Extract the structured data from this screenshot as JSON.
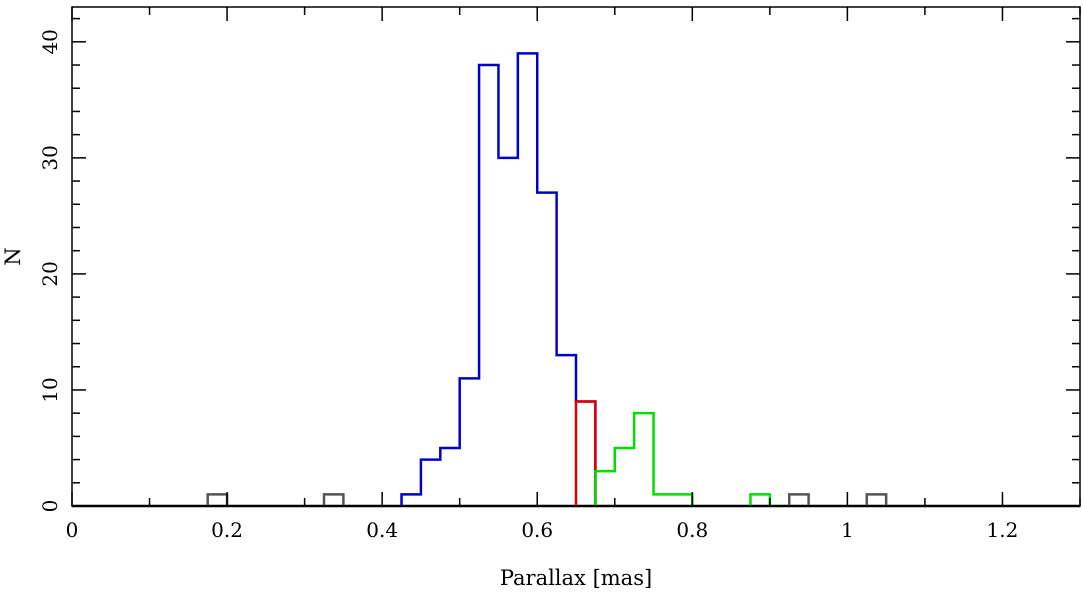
{
  "chart_data": {
    "type": "histogram",
    "xlabel": "Parallax [mas]",
    "ylabel": "N",
    "xlim": [
      0,
      1.3
    ],
    "ylim": [
      0,
      43
    ],
    "bin_width": 0.025,
    "x_ticks": [
      {
        "value": 0,
        "label": "0"
      },
      {
        "value": 0.2,
        "label": "0.2"
      },
      {
        "value": 0.4,
        "label": "0.4"
      },
      {
        "value": 0.6,
        "label": "0.6"
      },
      {
        "value": 0.8,
        "label": "0.8"
      },
      {
        "value": 1,
        "label": "1"
      },
      {
        "value": 1.2,
        "label": "1.2"
      }
    ],
    "y_ticks": [
      {
        "value": 0,
        "label": "0"
      },
      {
        "value": 10,
        "label": "10"
      },
      {
        "value": 20,
        "label": "20"
      },
      {
        "value": 30,
        "label": "30"
      },
      {
        "value": 40,
        "label": "40"
      }
    ],
    "series": [
      {
        "color": "#0000c8",
        "bins": [
          {
            "x0": 0.425,
            "count": 1
          },
          {
            "x0": 0.45,
            "count": 4
          },
          {
            "x0": 0.475,
            "count": 5
          },
          {
            "x0": 0.5,
            "count": 11
          },
          {
            "x0": 0.525,
            "count": 38
          },
          {
            "x0": 0.55,
            "count": 30
          },
          {
            "x0": 0.575,
            "count": 39
          },
          {
            "x0": 0.6,
            "count": 27
          },
          {
            "x0": 0.625,
            "count": 13
          },
          {
            "x0": 0.65,
            "count": 9
          }
        ]
      },
      {
        "color": "#e00000",
        "bins": [
          {
            "x0": 0.65,
            "count": 9
          }
        ]
      },
      {
        "color": "#00e000",
        "bins": [
          {
            "x0": 0.675,
            "count": 3
          },
          {
            "x0": 0.7,
            "count": 5
          },
          {
            "x0": 0.725,
            "count": 8
          },
          {
            "x0": 0.75,
            "count": 1
          },
          {
            "x0": 0.775,
            "count": 1
          },
          {
            "x0": 0.875,
            "count": 1
          }
        ]
      },
      {
        "color": "#555555",
        "bins": [
          {
            "x0": 0.175,
            "count": 1
          },
          {
            "x0": 0.325,
            "count": 1
          },
          {
            "x0": 0.925,
            "count": 1
          },
          {
            "x0": 1.025,
            "count": 1
          }
        ]
      }
    ]
  }
}
